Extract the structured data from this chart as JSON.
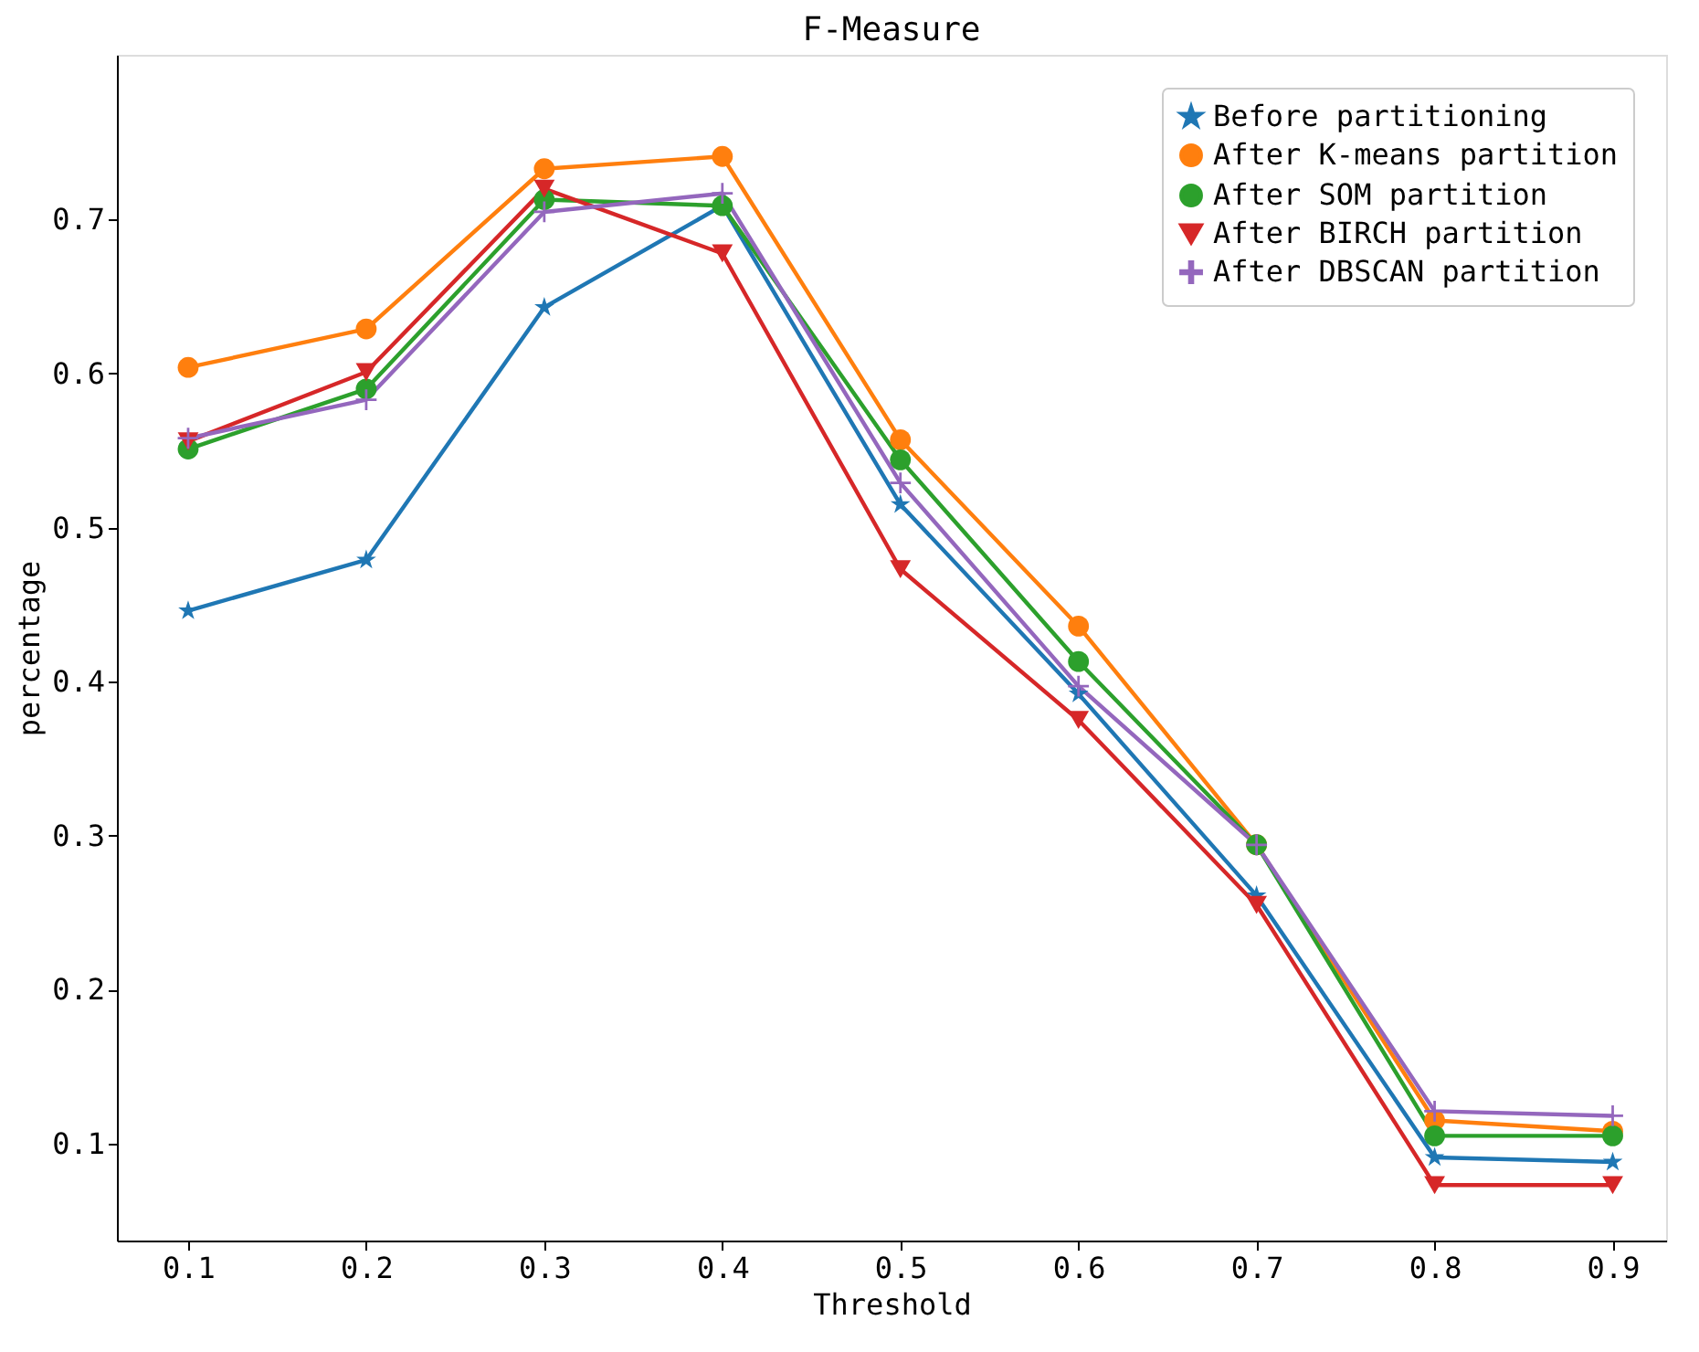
{
  "chart_data": {
    "type": "line",
    "title": "F-Measure",
    "xlabel": "Threshold",
    "ylabel": "percentage",
    "x": [
      0.1,
      0.2,
      0.3,
      0.4,
      0.5,
      0.6,
      0.7,
      0.8,
      0.9
    ],
    "xlim": [
      0.06,
      0.93
    ],
    "xticks": [
      0.1,
      0.2,
      0.3,
      0.4,
      0.5,
      0.6,
      0.7,
      0.8,
      0.9
    ],
    "ylim": [
      0.037,
      0.807
    ],
    "yticks": [
      0.1,
      0.2,
      0.3,
      0.4,
      0.5,
      0.6,
      0.7
    ],
    "grid": false,
    "legend": "top right",
    "line_style": "solid",
    "series": [
      {
        "name": "Before partitioning",
        "color": "#1f77b4",
        "marker": "star",
        "values": [
          0.446,
          0.479,
          0.643,
          0.709,
          0.515,
          0.392,
          0.261,
          0.091,
          0.088
        ]
      },
      {
        "name": "After K-means partition",
        "color": "#ff7f0e",
        "marker": "circle",
        "values": [
          0.604,
          0.629,
          0.733,
          0.741,
          0.557,
          0.436,
          0.294,
          0.115,
          0.108
        ]
      },
      {
        "name": "After SOM partition",
        "color": "#2ca02c",
        "marker": "circle",
        "values": [
          0.551,
          0.59,
          0.713,
          0.709,
          0.544,
          0.413,
          0.294,
          0.105,
          0.105
        ]
      },
      {
        "name": "After BIRCH partition",
        "color": "#d62728",
        "marker": "triangle",
        "values": [
          0.556,
          0.601,
          0.72,
          0.678,
          0.473,
          0.375,
          0.255,
          0.073,
          0.073
        ]
      },
      {
        "name": "After DBSCAN partition",
        "color": "#9467bd",
        "marker": "cross",
        "values": [
          0.558,
          0.583,
          0.705,
          0.717,
          0.529,
          0.397,
          0.294,
          0.121,
          0.118
        ]
      }
    ]
  }
}
